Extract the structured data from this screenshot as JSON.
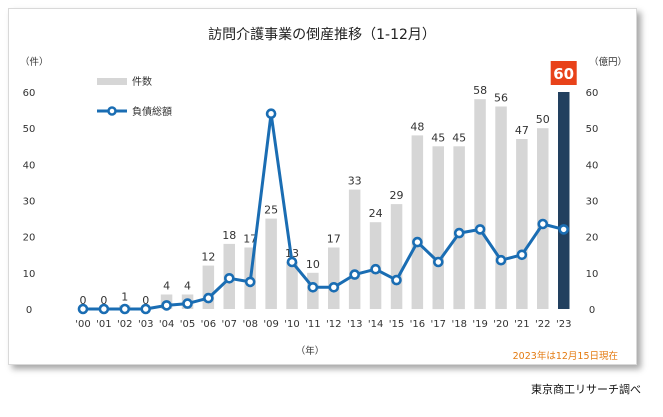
{
  "chart_data": {
    "type": "bar",
    "title": "訪問介護事業の倒産推移（1-12月）",
    "categories": [
      "'00",
      "'01",
      "'02",
      "'03",
      "'04",
      "'05",
      "'06",
      "'07",
      "'08",
      "'09",
      "'10",
      "'11",
      "'12",
      "'13",
      "'14",
      "'15",
      "'16",
      "'17",
      "'18",
      "'19",
      "'20",
      "'21",
      "'22",
      "'23"
    ],
    "series": [
      {
        "name": "件数",
        "type": "bar",
        "axis": "left",
        "color": "#d6d6d6",
        "values": [
          0,
          0,
          1,
          0,
          4,
          4,
          12,
          18,
          17,
          25,
          13,
          10,
          17,
          33,
          24,
          29,
          48,
          45,
          45,
          58,
          56,
          47,
          50,
          60
        ]
      },
      {
        "name": "負債総額",
        "type": "line",
        "axis": "right",
        "color": "#1a6db3",
        "values": [
          0,
          0,
          0,
          0,
          1,
          1.5,
          3,
          8.5,
          7.5,
          54,
          13,
          6,
          6,
          9.5,
          11,
          8,
          18.5,
          13,
          21,
          22,
          13.5,
          15,
          23.5,
          22
        ]
      }
    ],
    "highlight": {
      "index": 23,
      "bar_color": "#22405f",
      "label_bg": "#e8421a",
      "label": "60"
    },
    "y_left": {
      "unit": "（件）",
      "ticks": [
        0,
        10,
        20,
        30,
        40,
        50,
        60
      ],
      "range": [
        0,
        60
      ]
    },
    "y_right": {
      "unit": "（億円）",
      "ticks": [
        0,
        10,
        20,
        30,
        40,
        50,
        60
      ],
      "range": [
        0,
        60
      ]
    },
    "xlabel": "（年）",
    "note": "2023年は12月15日現在",
    "legend_placement": "top-left",
    "grid": false
  },
  "source": "東京商工リサーチ調べ"
}
